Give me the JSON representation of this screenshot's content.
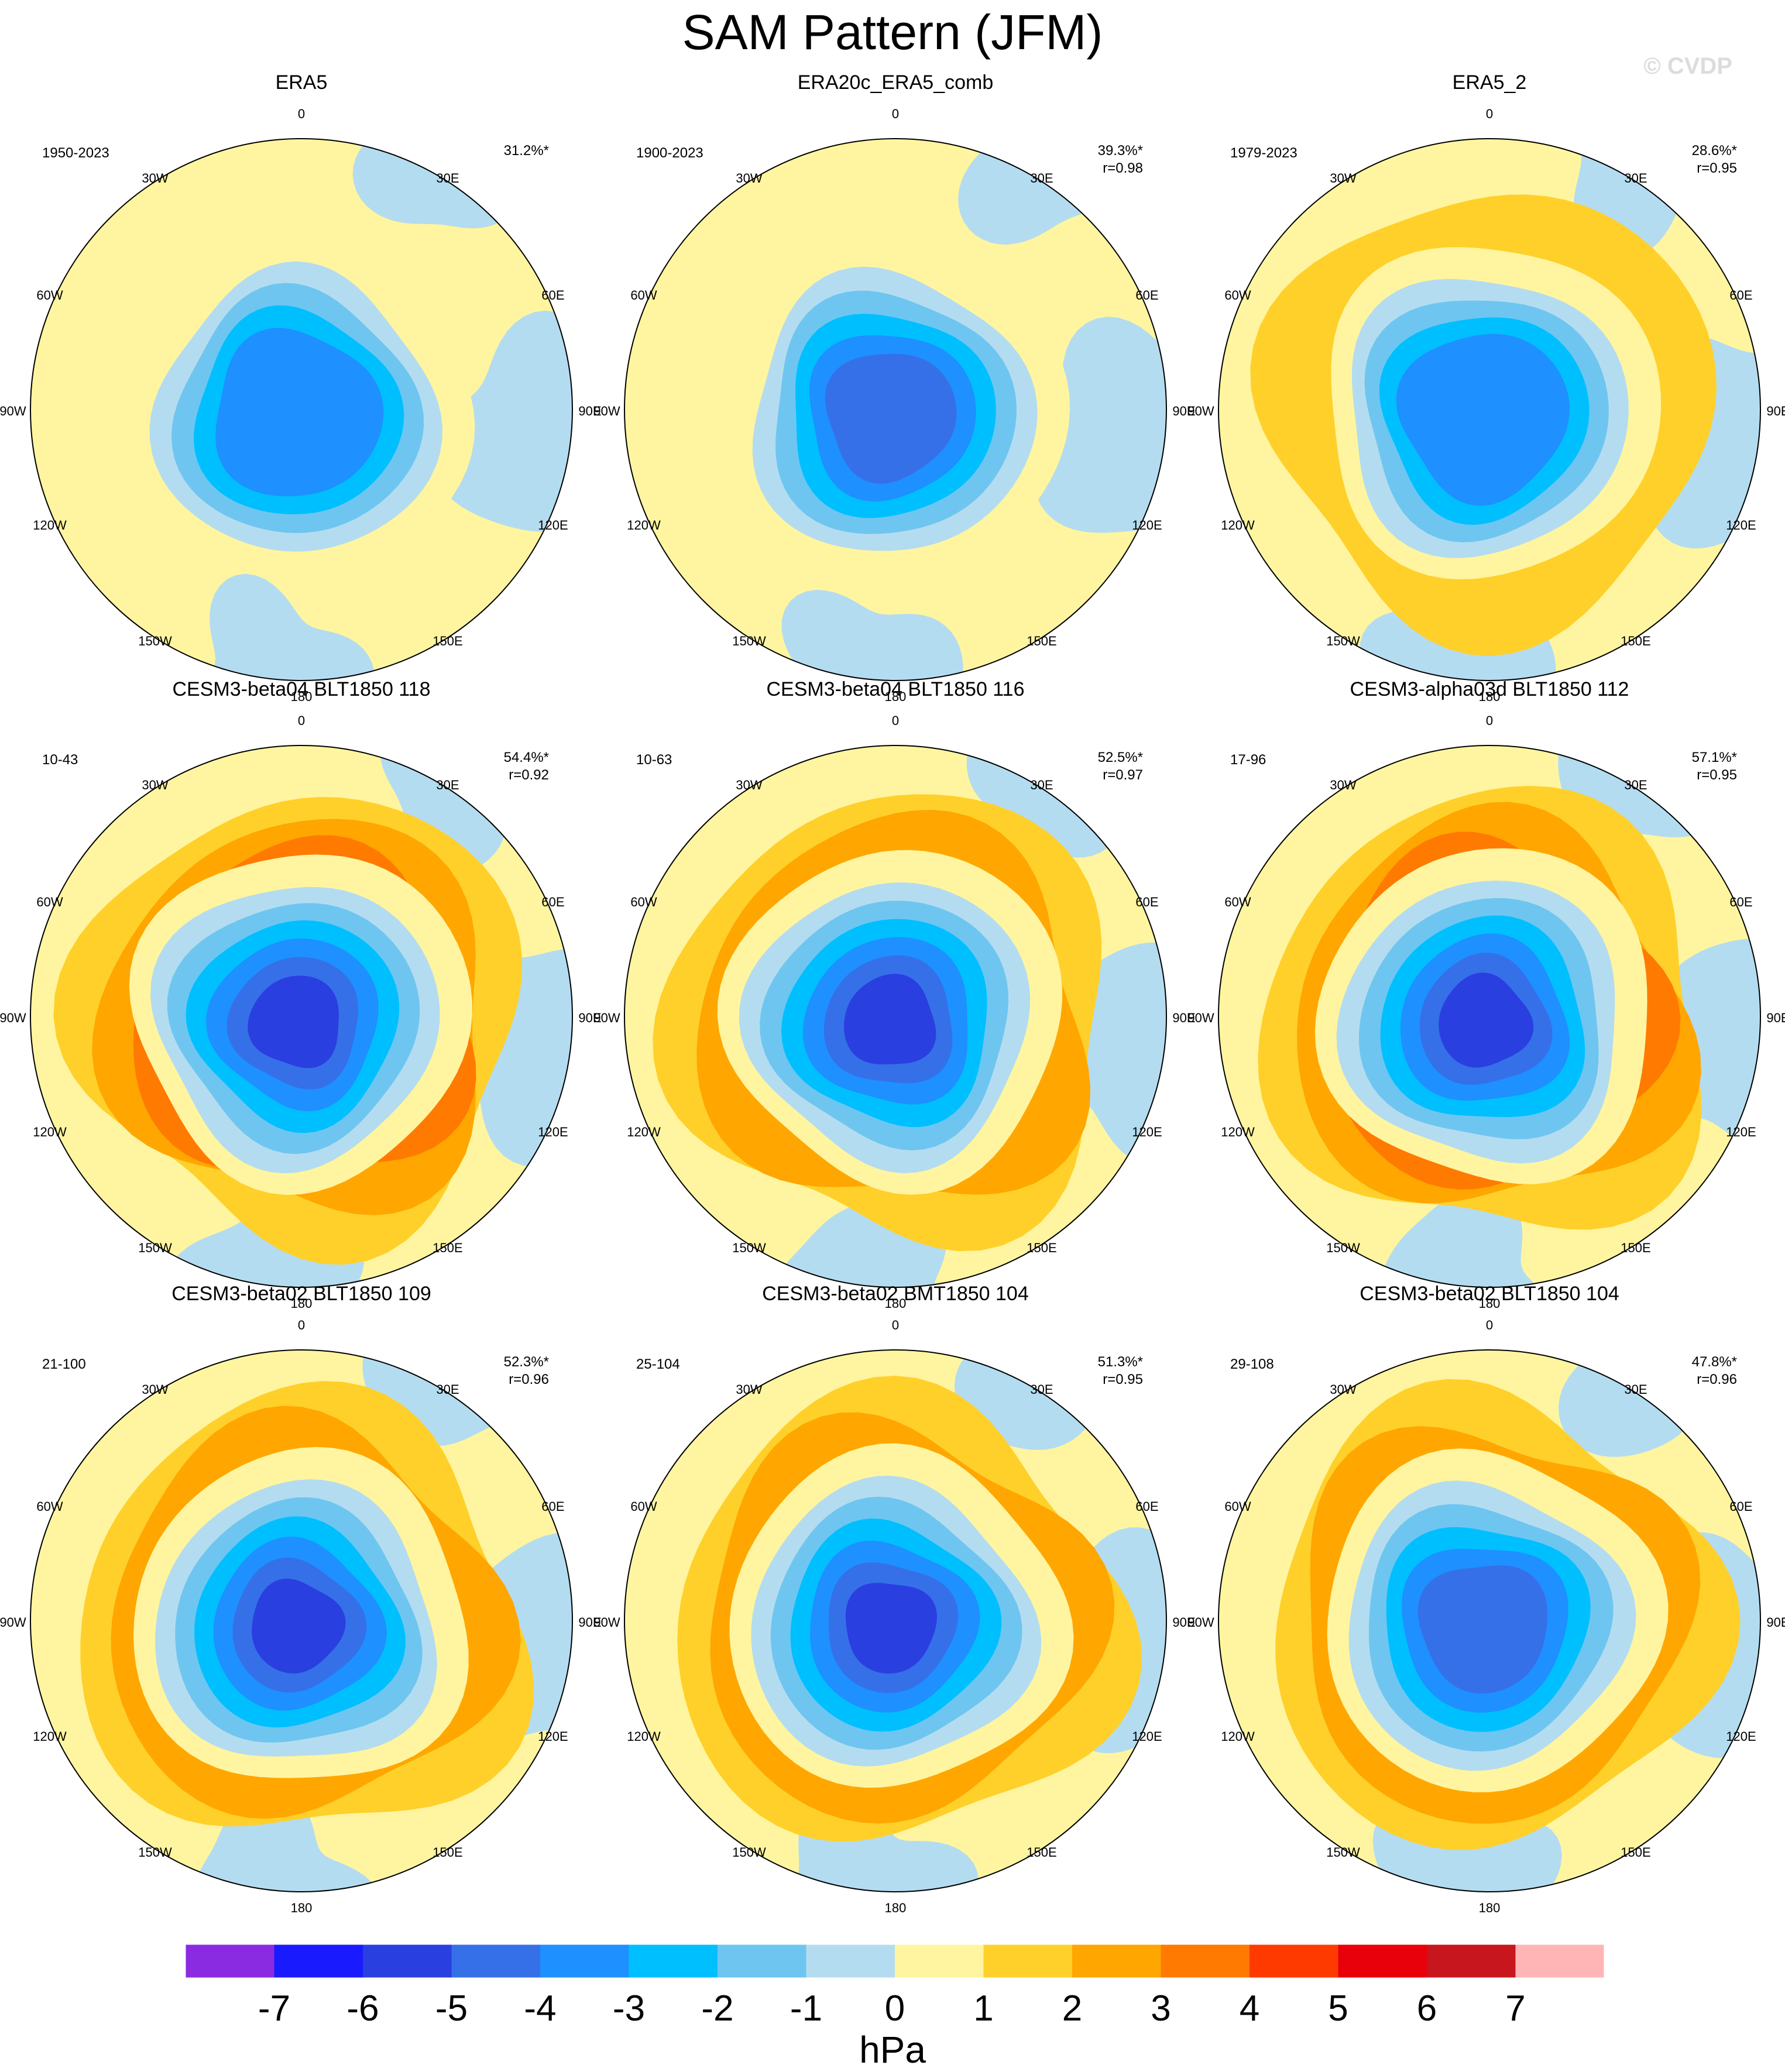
{
  "title": "SAM Pattern (JFM)",
  "watermark": "© CVDP",
  "colors": {
    "-7": "#8a2be2",
    "-6": "#1a1aff",
    "-5": "#2a3fe0",
    "-4": "#3570e8",
    "-3": "#1e90ff",
    "-2": "#00bfff",
    "-1": "#6ec6f0",
    "0": "#b4dcf0",
    "1": "#fff5a0",
    "2": "#ffd02a",
    "3": "#ffa600",
    "4": "#ff7a00",
    "5": "#ff3a00",
    "6": "#e8000a",
    "7": "#c8161e",
    "8": "#ffb5b5"
  },
  "chart_data": {
    "type": "heatmap",
    "projection": "south-polar-stereographic",
    "field": "SLP regression onto SAM index",
    "season": "JFM",
    "lon_labels": [
      "0",
      "30E",
      "60E",
      "90E",
      "120E",
      "150E",
      "180",
      "150W",
      "120W",
      "90W",
      "60W",
      "30W"
    ],
    "colorbar": {
      "label": "hPa",
      "tick_labels": [
        "-7",
        "-6",
        "-5",
        "-4",
        "-3",
        "-2",
        "-1",
        "0",
        "1",
        "2",
        "3",
        "4",
        "5",
        "6",
        "7"
      ],
      "levels": [
        -7,
        -6,
        -5,
        -4,
        -3,
        -2,
        -1,
        0,
        1,
        2,
        3,
        4,
        5,
        6,
        7
      ]
    },
    "panels": [
      {
        "name": "ERA5",
        "period": "1950-2023",
        "pct": "31.2%*",
        "r": "",
        "polar_min": -3,
        "ring_max": 1,
        "wave": 0.2
      },
      {
        "name": "ERA20c_ERA5_comb",
        "period": "1900-2023",
        "pct": "39.3%*",
        "r": "r=0.98",
        "polar_min": -4,
        "ring_max": 1,
        "wave": 0.2
      },
      {
        "name": "ERA5_2",
        "period": "1979-2023",
        "pct": "28.6%*",
        "r": "r=0.95",
        "polar_min": -3,
        "ring_max": 2,
        "wave": 0.3
      },
      {
        "name": "CESM3-beta04 BLT1850 118",
        "period": "10-43",
        "pct": "54.4%*",
        "r": "r=0.92",
        "polar_min": -5,
        "ring_max": 4,
        "wave": 0.6
      },
      {
        "name": "CESM3-beta04 BLT1850 116",
        "period": "10-63",
        "pct": "52.5%*",
        "r": "r=0.97",
        "polar_min": -5,
        "ring_max": 3,
        "wave": 0.6
      },
      {
        "name": "CESM3-alpha03d BLT1850 112",
        "period": "17-96",
        "pct": "57.1%*",
        "r": "r=0.95",
        "polar_min": -5,
        "ring_max": 4,
        "wave": 0.6
      },
      {
        "name": "CESM3-beta02 BLT1850 109",
        "period": "21-100",
        "pct": "52.3%*",
        "r": "r=0.96",
        "polar_min": -5,
        "ring_max": 3,
        "wave": 0.5
      },
      {
        "name": "CESM3-beta02 BMT1850 104",
        "period": "25-104",
        "pct": "51.3%*",
        "r": "r=0.95",
        "polar_min": -5,
        "ring_max": 3,
        "wave": 0.5
      },
      {
        "name": "CESM3-beta02 BLT1850 104",
        "period": "29-108",
        "pct": "47.8%*",
        "r": "r=0.96",
        "polar_min": -4,
        "ring_max": 3,
        "wave": 0.5
      }
    ]
  }
}
